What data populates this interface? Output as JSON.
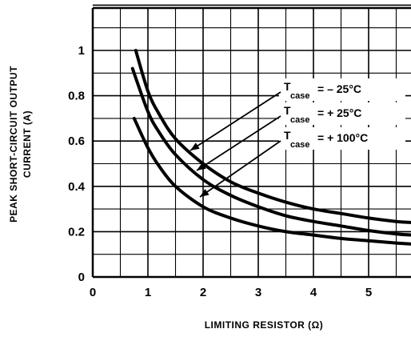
{
  "chart_data": {
    "type": "line",
    "xlabel": "LIMITING RESISTOR (Ω)",
    "ylabel_line1": "PEAK SHORT-CIRCUIT OUTPUT",
    "ylabel_line2": "CURRENT (A)",
    "xlim": [
      0,
      5.8
    ],
    "ylim": [
      0,
      1.2
    ],
    "x_ticks": [
      "0",
      "1",
      "2",
      "3",
      "4",
      "5"
    ],
    "y_ticks": [
      "0",
      "0.2",
      "0.4",
      "0.6",
      "0.8",
      "1"
    ],
    "grid": true,
    "series": [
      {
        "name": "T_case = –25°C",
        "label_main": "T",
        "label_sub": "case",
        "label_value": "= – 25°C",
        "x": [
          0.78,
          1.0,
          1.2,
          1.5,
          2.0,
          2.5,
          3.0,
          3.5,
          4.0,
          4.5,
          5.0,
          5.5,
          5.8
        ],
        "y": [
          1.0,
          0.82,
          0.72,
          0.61,
          0.5,
          0.42,
          0.37,
          0.33,
          0.3,
          0.28,
          0.26,
          0.245,
          0.24
        ]
      },
      {
        "name": "T_case = + 25°C",
        "label_main": "T",
        "label_sub": "case",
        "label_value": "= + 25°C",
        "x": [
          0.72,
          1.0,
          1.2,
          1.5,
          2.0,
          2.5,
          3.0,
          3.5,
          4.0,
          4.5,
          5.0,
          5.5,
          5.8
        ],
        "y": [
          0.92,
          0.73,
          0.64,
          0.54,
          0.43,
          0.36,
          0.31,
          0.27,
          0.245,
          0.225,
          0.205,
          0.19,
          0.185
        ]
      },
      {
        "name": "T_case = + 100°C",
        "label_main": "T",
        "label_sub": "case",
        "label_value": "= + 100°C",
        "x": [
          0.75,
          1.0,
          1.2,
          1.5,
          2.0,
          2.5,
          3.0,
          3.5,
          4.0,
          4.5,
          5.0,
          5.5,
          5.8
        ],
        "y": [
          0.7,
          0.57,
          0.49,
          0.4,
          0.31,
          0.26,
          0.225,
          0.2,
          0.185,
          0.17,
          0.16,
          0.15,
          0.145
        ]
      }
    ]
  }
}
